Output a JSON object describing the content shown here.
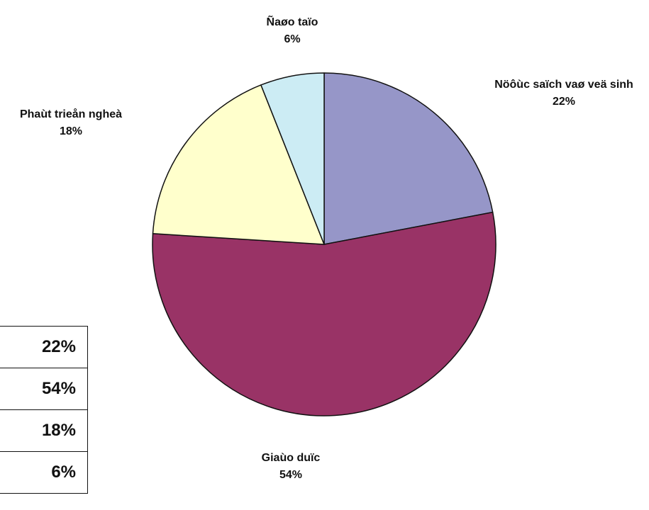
{
  "chart_data": {
    "type": "pie",
    "slices": [
      {
        "label": "Nöôùc saïch vaø veä sinh",
        "value": 22,
        "display": "22%",
        "color": "#9696c8"
      },
      {
        "label": "Giaùo duïc",
        "value": 54,
        "display": "54%",
        "color": "#993366"
      },
      {
        "label": "Phaùt trieån ngheà",
        "value": 18,
        "display": "18%",
        "color": "#ffffcc"
      },
      {
        "label": "Ñaøo taïo",
        "value": 6,
        "display": "6%",
        "color": "#ccecf4"
      }
    ],
    "start_angle_deg": 0,
    "direction": "clockwise"
  },
  "side_table": {
    "rows": [
      "22%",
      "54%",
      "18%",
      "6%"
    ]
  }
}
